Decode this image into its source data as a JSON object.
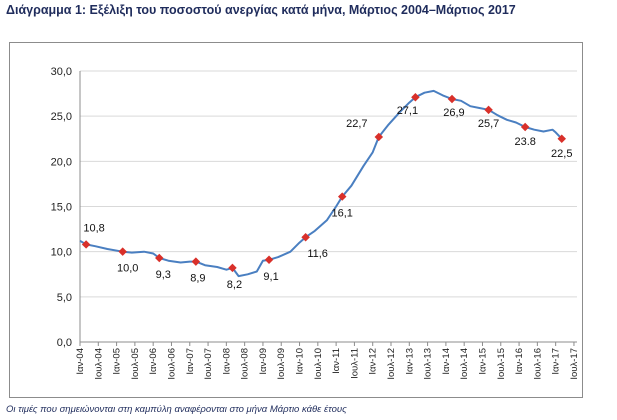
{
  "title": "Διάγραμμα 1: Εξέλιξη του ποσοστού ανεργίας κατά μήνα, Μάρτιος 2004–Μάρτιος 2017",
  "footnote": "Οι τιμές που σημειώνονται στη καμπύλη αναφέρονται στο μήνα Μάρτιο κάθε έτους",
  "colors": {
    "line": "#4a7fc1",
    "marker": "#d9302a",
    "grid": "#d9d9d9"
  },
  "chart_data": {
    "type": "line",
    "title": "",
    "xlabel": "",
    "ylabel": "",
    "ylim": [
      0,
      30
    ],
    "yticks": [
      "0,0",
      "5,0",
      "10,0",
      "15,0",
      "20,0",
      "25,0",
      "30,0"
    ],
    "grid": "horizontal",
    "x_tick_labels": [
      "Ιαν-04",
      "Ιουλ-04",
      "Ιαν-05",
      "Ιουλ-05",
      "Ιαν-06",
      "Ιουλ-06",
      "Ιαν-07",
      "Ιουλ-07",
      "Ιαν-08",
      "Ιουλ-08",
      "Ιαν-09",
      "Ιουλ-09",
      "Ιαν-10",
      "Ιουλ-10",
      "Ιαν-11",
      "Ιουλ-11",
      "Ιαν-12",
      "Ιουλ-12",
      "Ιαν-13",
      "Ιουλ-13",
      "Ιαν-14",
      "Ιουλ-14",
      "Ιαν-15",
      "Ιουλ-15",
      "Ιαν-16",
      "Ιουλ-16",
      "Ιαν-17",
      "Ιουλ-17"
    ],
    "series": [
      {
        "values": [
          {
            "x": "2004-01",
            "y": 11.2
          },
          {
            "x": "2004-03",
            "y": 10.8
          },
          {
            "x": "2004-06",
            "y": 10.6
          },
          {
            "x": "2004-10",
            "y": 10.3
          },
          {
            "x": "2005-03",
            "y": 10.0
          },
          {
            "x": "2005-06",
            "y": 9.9
          },
          {
            "x": "2005-10",
            "y": 10.0
          },
          {
            "x": "2006-01",
            "y": 9.8
          },
          {
            "x": "2006-03",
            "y": 9.3
          },
          {
            "x": "2006-06",
            "y": 9.0
          },
          {
            "x": "2006-10",
            "y": 8.8
          },
          {
            "x": "2007-01",
            "y": 8.9
          },
          {
            "x": "2007-03",
            "y": 8.9
          },
          {
            "x": "2007-06",
            "y": 8.5
          },
          {
            "x": "2007-10",
            "y": 8.3
          },
          {
            "x": "2008-01",
            "y": 8.0
          },
          {
            "x": "2008-03",
            "y": 8.2
          },
          {
            "x": "2008-05",
            "y": 7.3
          },
          {
            "x": "2008-08",
            "y": 7.5
          },
          {
            "x": "2008-11",
            "y": 7.8
          },
          {
            "x": "2009-01",
            "y": 9.0
          },
          {
            "x": "2009-03",
            "y": 9.1
          },
          {
            "x": "2009-06",
            "y": 9.4
          },
          {
            "x": "2009-10",
            "y": 10.0
          },
          {
            "x": "2010-01",
            "y": 11.0
          },
          {
            "x": "2010-03",
            "y": 11.6
          },
          {
            "x": "2010-06",
            "y": 12.3
          },
          {
            "x": "2010-10",
            "y": 13.5
          },
          {
            "x": "2011-01",
            "y": 15.0
          },
          {
            "x": "2011-03",
            "y": 16.1
          },
          {
            "x": "2011-06",
            "y": 17.3
          },
          {
            "x": "2011-10",
            "y": 19.5
          },
          {
            "x": "2012-01",
            "y": 21.0
          },
          {
            "x": "2012-03",
            "y": 22.7
          },
          {
            "x": "2012-06",
            "y": 24.0
          },
          {
            "x": "2012-10",
            "y": 25.5
          },
          {
            "x": "2013-01",
            "y": 26.5
          },
          {
            "x": "2013-03",
            "y": 27.1
          },
          {
            "x": "2013-06",
            "y": 27.6
          },
          {
            "x": "2013-09",
            "y": 27.8
          },
          {
            "x": "2013-12",
            "y": 27.3
          },
          {
            "x": "2014-03",
            "y": 26.9
          },
          {
            "x": "2014-06",
            "y": 26.7
          },
          {
            "x": "2014-09",
            "y": 26.1
          },
          {
            "x": "2014-12",
            "y": 25.9
          },
          {
            "x": "2015-03",
            "y": 25.7
          },
          {
            "x": "2015-06",
            "y": 25.1
          },
          {
            "x": "2015-09",
            "y": 24.6
          },
          {
            "x": "2015-12",
            "y": 24.3
          },
          {
            "x": "2016-03",
            "y": 23.8
          },
          {
            "x": "2016-06",
            "y": 23.5
          },
          {
            "x": "2016-09",
            "y": 23.3
          },
          {
            "x": "2016-12",
            "y": 23.5
          },
          {
            "x": "2017-01",
            "y": 23.2
          },
          {
            "x": "2017-03",
            "y": 22.5
          }
        ],
        "markers": [
          {
            "x": "2004-03",
            "y": 10.8,
            "label": "10,8"
          },
          {
            "x": "2005-03",
            "y": 10.0,
            "label": "10,0"
          },
          {
            "x": "2006-03",
            "y": 9.3,
            "label": "9,3"
          },
          {
            "x": "2007-03",
            "y": 8.9,
            "label": "8,9"
          },
          {
            "x": "2008-03",
            "y": 8.2,
            "label": "8,2"
          },
          {
            "x": "2009-03",
            "y": 9.1,
            "label": "9,1"
          },
          {
            "x": "2010-03",
            "y": 11.6,
            "label": "11,6"
          },
          {
            "x": "2011-03",
            "y": 16.1,
            "label": "16,1"
          },
          {
            "x": "2012-03",
            "y": 22.7,
            "label": "22,7"
          },
          {
            "x": "2013-03",
            "y": 27.1,
            "label": "27,1"
          },
          {
            "x": "2014-03",
            "y": 26.9,
            "label": "26,9"
          },
          {
            "x": "2015-03",
            "y": 25.7,
            "label": "25,7"
          },
          {
            "x": "2016-03",
            "y": 23.8,
            "label": "23.8"
          },
          {
            "x": "2017-03",
            "y": 22.5,
            "label": "22,5"
          }
        ]
      }
    ]
  }
}
